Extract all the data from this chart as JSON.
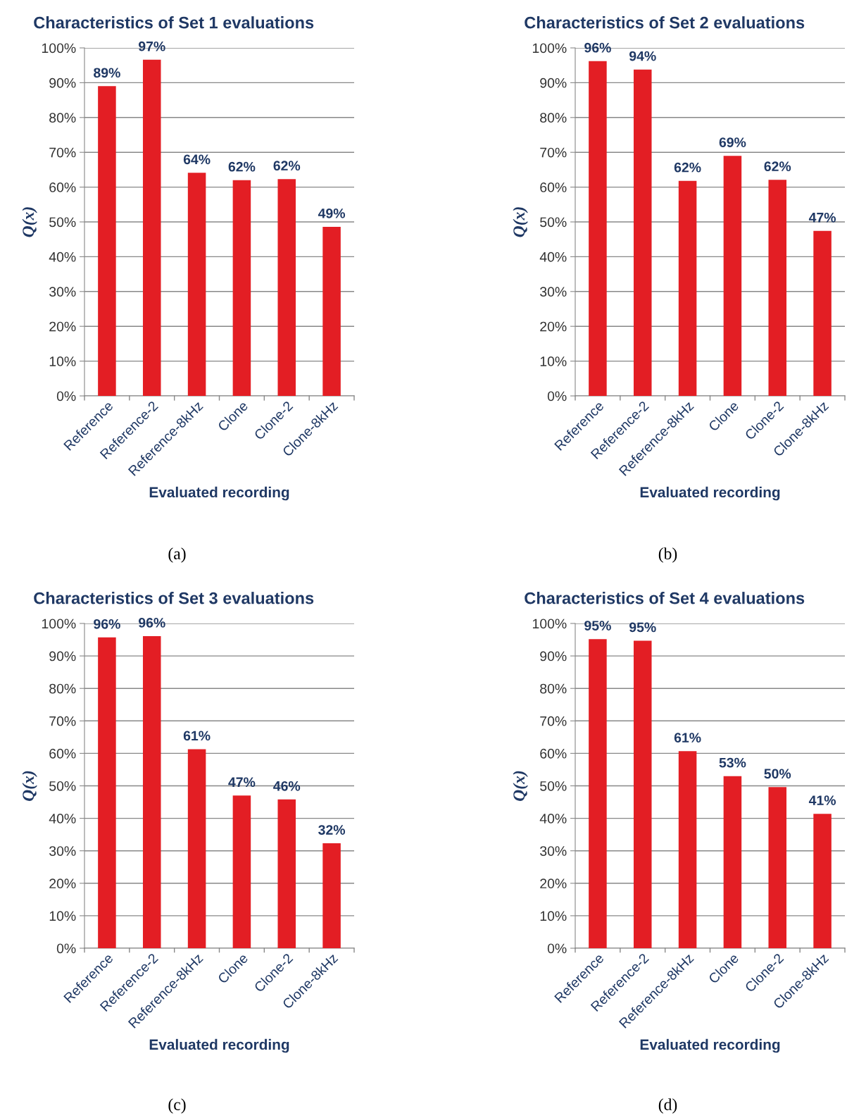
{
  "chart_data": [
    {
      "type": "bar",
      "title": "Characteristics of Set 1 evaluations",
      "xlabel": "Evaluated recording",
      "ylabel": "Q(x)",
      "categories": [
        "Reference",
        "Reference-2",
        "Reference-8kHz",
        "Clone",
        "Clone-2",
        "Clone-8kHz"
      ],
      "values": [
        89,
        96.6,
        64.1,
        62,
        62.3,
        48.6
      ],
      "value_labels": [
        "89%",
        "97%",
        "64%",
        "62%",
        "62%",
        "49%"
      ],
      "color": "#e31e24",
      "ylim": [
        0,
        100
      ],
      "yticks": [
        {
          "value": 0,
          "label": "0%"
        },
        {
          "value": 10,
          "label": "10%"
        },
        {
          "value": 20,
          "label": "20%"
        },
        {
          "value": 30,
          "label": "30%"
        },
        {
          "value": 40,
          "label": "40%"
        },
        {
          "value": 50,
          "label": "50%"
        },
        {
          "value": 60,
          "label": "60%"
        },
        {
          "value": 70,
          "label": "70%"
        },
        {
          "value": 80,
          "label": "80%"
        },
        {
          "value": 90,
          "label": "90%"
        },
        {
          "value": 100,
          "label": "100%"
        }
      ],
      "grid": "y",
      "annotations": [
        "(a)"
      ]
    },
    {
      "type": "bar",
      "title": "Characteristics of Set 2 evaluations",
      "xlabel": "Evaluated recording",
      "ylabel": "Q(x)",
      "categories": [
        "Reference",
        "Reference-2",
        "Reference-8kHz",
        "Clone",
        "Clone-2",
        "Clone-8kHz"
      ],
      "values": [
        96.2,
        93.8,
        61.8,
        69,
        62.1,
        47.4
      ],
      "value_labels": [
        "96%",
        "94%",
        "62%",
        "69%",
        "62%",
        "47%"
      ],
      "color": "#e31e24",
      "ylim": [
        0,
        100
      ],
      "yticks": [
        {
          "value": 0,
          "label": "0%"
        },
        {
          "value": 10,
          "label": "10%"
        },
        {
          "value": 20,
          "label": "20%"
        },
        {
          "value": 30,
          "label": "30%"
        },
        {
          "value": 40,
          "label": "40%"
        },
        {
          "value": 50,
          "label": "50%"
        },
        {
          "value": 60,
          "label": "60%"
        },
        {
          "value": 70,
          "label": "70%"
        },
        {
          "value": 80,
          "label": "80%"
        },
        {
          "value": 90,
          "label": "90%"
        },
        {
          "value": 100,
          "label": "100%"
        }
      ],
      "grid": "y",
      "annotations": [
        "(b)"
      ]
    },
    {
      "type": "bar",
      "title": "Characteristics of Set 3 evaluations",
      "xlabel": "Evaluated recording",
      "ylabel": "Q(x)",
      "categories": [
        "Reference",
        "Reference-2",
        "Reference-8kHz",
        "Clone",
        "Clone-2",
        "Clone-8kHz"
      ],
      "values": [
        95.7,
        96.1,
        61.3,
        47,
        45.8,
        32.3
      ],
      "value_labels": [
        "96%",
        "96%",
        "61%",
        "47%",
        "46%",
        "32%"
      ],
      "color": "#e31e24",
      "ylim": [
        0,
        100
      ],
      "yticks": [
        {
          "value": 0,
          "label": "0%"
        },
        {
          "value": 10,
          "label": "10%"
        },
        {
          "value": 20,
          "label": "20%"
        },
        {
          "value": 30,
          "label": "30%"
        },
        {
          "value": 40,
          "label": "40%"
        },
        {
          "value": 50,
          "label": "50%"
        },
        {
          "value": 60,
          "label": "60%"
        },
        {
          "value": 70,
          "label": "70%"
        },
        {
          "value": 80,
          "label": "80%"
        },
        {
          "value": 90,
          "label": "90%"
        },
        {
          "value": 100,
          "label": "100%"
        }
      ],
      "grid": "y",
      "annotations": [
        "(c)"
      ]
    },
    {
      "type": "bar",
      "title": "Characteristics of Set 4 evaluations",
      "xlabel": "Evaluated recording",
      "ylabel": "Q(x)",
      "categories": [
        "Reference",
        "Reference-2",
        "Reference-8kHz",
        "Clone",
        "Clone-2",
        "Clone-8kHz"
      ],
      "values": [
        95.2,
        94.7,
        60.7,
        53,
        49.6,
        41.4
      ],
      "value_labels": [
        "95%",
        "95%",
        "61%",
        "53%",
        "50%",
        "41%"
      ],
      "color": "#e31e24",
      "ylim": [
        0,
        100
      ],
      "yticks": [
        {
          "value": 0,
          "label": "0%"
        },
        {
          "value": 10,
          "label": "10%"
        },
        {
          "value": 20,
          "label": "20%"
        },
        {
          "value": 30,
          "label": "30%"
        },
        {
          "value": 40,
          "label": "40%"
        },
        {
          "value": 50,
          "label": "50%"
        },
        {
          "value": 60,
          "label": "60%"
        },
        {
          "value": 70,
          "label": "70%"
        },
        {
          "value": 80,
          "label": "80%"
        },
        {
          "value": 90,
          "label": "90%"
        },
        {
          "value": 100,
          "label": "100%"
        }
      ],
      "grid": "y",
      "annotations": [
        "(d)"
      ]
    }
  ]
}
